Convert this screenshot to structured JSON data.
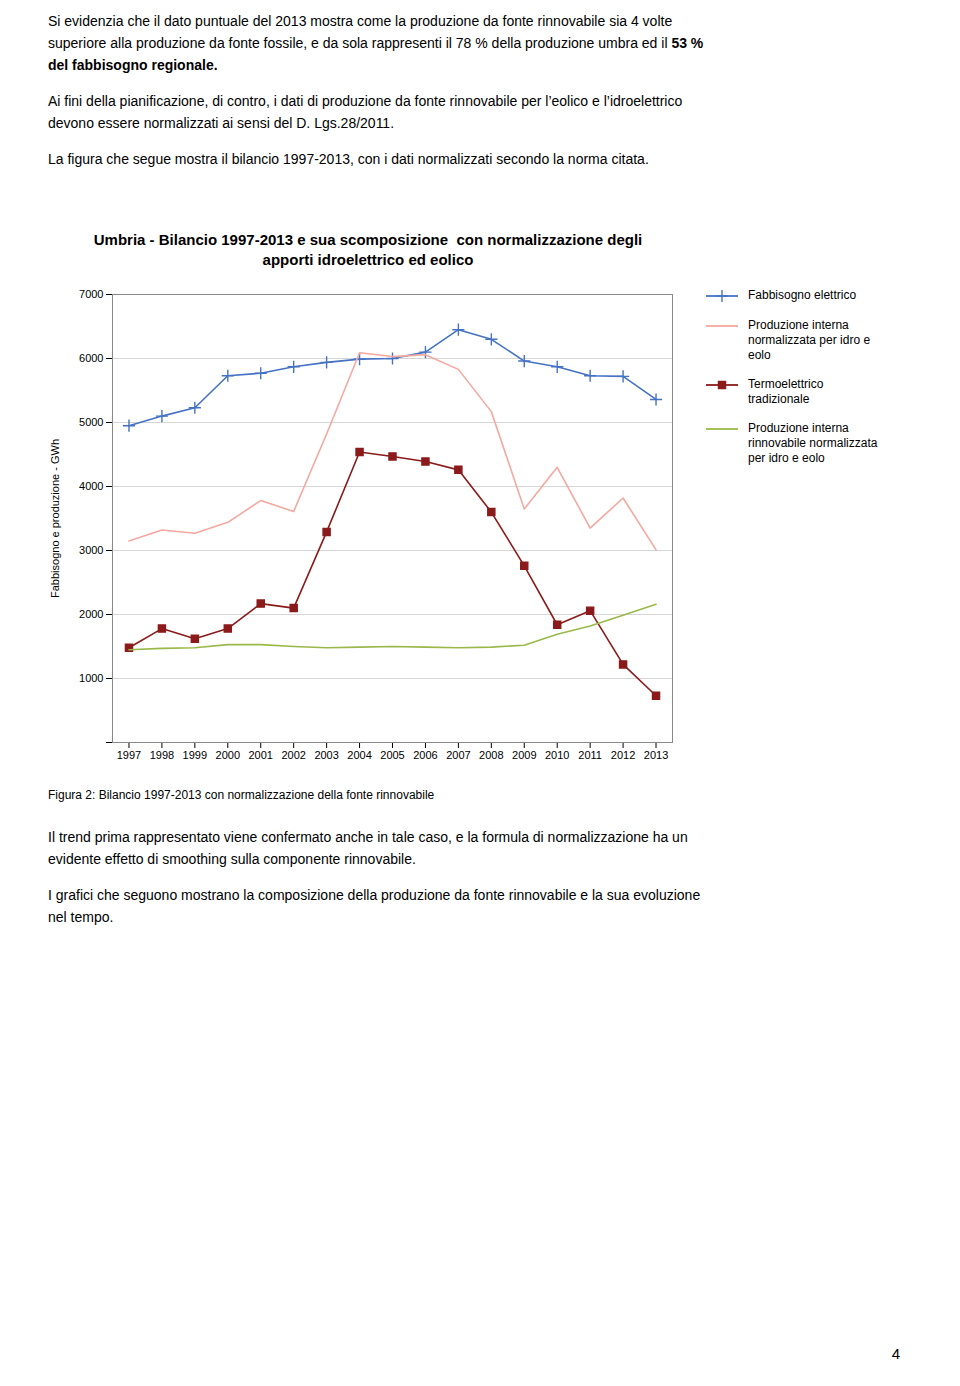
{
  "chart_data": {
    "type": "line",
    "title": "Umbria - Bilancio 1997-2013 e sua scomposizione  con normalizzazione degli\napporti idroelettrico ed eolico",
    "y_label": "Fabbisogno e produzione - GWh",
    "x": [
      1997,
      1998,
      1999,
      2000,
      2001,
      2002,
      2003,
      2004,
      2005,
      2006,
      2007,
      2008,
      2009,
      2010,
      2011,
      2012,
      2013
    ],
    "series": [
      {
        "name": "Fabbisogno elettrico",
        "color": "#4472C4",
        "marker": "plus",
        "values": [
          4950,
          5100,
          5230,
          5730,
          5770,
          5870,
          5940,
          5990,
          6000,
          6100,
          6450,
          6300,
          5960,
          5870,
          5730,
          5720,
          5360
        ]
      },
      {
        "name": "Produzione interna\nnormalizzata per idro e\neolo",
        "color": "#F4A8A0",
        "values": [
          3150,
          3320,
          3270,
          3440,
          3780,
          3610,
          4820,
          6090,
          6030,
          6060,
          5830,
          5170,
          3650,
          4300,
          3350,
          3820,
          3010
        ]
      },
      {
        "name": "Termoelettrico\ntradizionale",
        "color": "#8B1A1A",
        "marker": "square",
        "values": [
          1480,
          1780,
          1620,
          1780,
          2170,
          2100,
          3290,
          4540,
          4470,
          4390,
          4260,
          3600,
          2760,
          1840,
          2060,
          1220,
          730
        ]
      },
      {
        "name": "Produzione interna\nrinnovabile normalizzata\nper idro e eolo",
        "color": "#9AB84A",
        "values": [
          1450,
          1470,
          1480,
          1530,
          1530,
          1500,
          1480,
          1490,
          1500,
          1490,
          1480,
          1490,
          1520,
          1690,
          1820,
          1990,
          2160
        ]
      }
    ],
    "xlim": [
      1996.5,
      2013.5
    ],
    "xticks": [
      1997,
      1998,
      1999,
      2000,
      2001,
      2002,
      2003,
      2004,
      2005,
      2006,
      2007,
      2008,
      2009,
      2010,
      2011,
      2012,
      2013
    ],
    "ylim": [
      0,
      7000
    ],
    "yticks": [
      {
        "value": 0,
        "label": null
      },
      1000,
      2000,
      3000,
      4000,
      5000,
      6000,
      7000
    ],
    "grid": true,
    "legend": "right",
    "caption": "Figura 2: Bilancio 1997-2013 con normalizzazione della fonte rinnovabile"
  },
  "text1_normal": "Si evidenzia che il dato puntuale del 2013 mostra come la produzione da fonte rinnovabile sia 4 volte\nsuperiore alla produzione da fonte fossile, e da sola rappresenti il 78 % della produzione umbra ed il ",
  "text1_bold": "53 %\ndel fabbisogno regionale.",
  "text2": "Ai fini della pianificazione, di contro, i dati di produzione da fonte rinnovabile per l’eolico e l’idroelettrico\ndevono essere normalizzati ai sensi del D. Lgs.28/2011.",
  "text3": "La figura che segue mostra il bilancio 1997-2013, con i dati normalizzati secondo la norma citata.",
  "text4": "Il trend prima rappresentato viene confermato anche in tale caso, e la formula di normalizzazione ha un\nevidente effetto di smoothing sulla componente rinnovabile.",
  "text5": "I grafici che seguono mostrano la composizione della produzione da fonte rinnovabile e la sua evoluzione\nnel tempo.",
  "page_number": "4"
}
